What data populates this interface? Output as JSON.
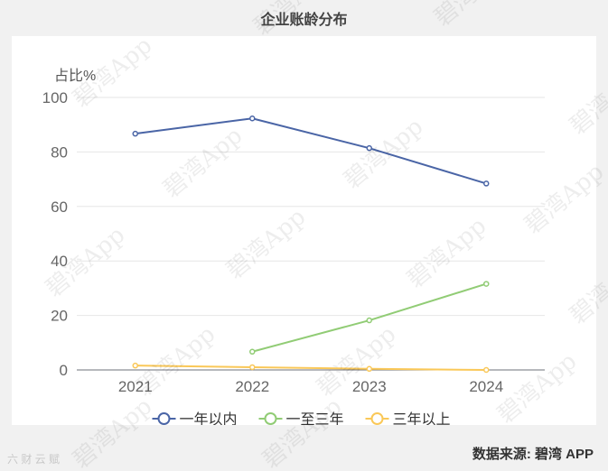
{
  "title": "企业账龄分布",
  "source": "数据来源: 碧湾 APP",
  "bottom_watermark": "六 财 云 赋",
  "watermark_text": "碧湾App",
  "chart_data": {
    "type": "line",
    "title": "企业账龄分布",
    "ylabel": "占比%",
    "xlabel": "",
    "categories": [
      "2021",
      "2022",
      "2023",
      "2024"
    ],
    "ylim": [
      0,
      100
    ],
    "yticks": [
      0,
      20,
      40,
      60,
      80,
      100
    ],
    "grid": true,
    "legend_position": "bottom",
    "series": [
      {
        "name": "一年以内",
        "color": "#5470c6",
        "stroke": "#4a65a6",
        "values": [
          86.7,
          92.3,
          81.4,
          68.4
        ]
      },
      {
        "name": "一至三年",
        "color": "#91cc75",
        "stroke": "#91cc75",
        "values": [
          null,
          6.7,
          18.2,
          31.6
        ]
      },
      {
        "name": "三年以上",
        "color": "#fac858",
        "stroke": "#fac858",
        "values": [
          1.6,
          1.0,
          0.4,
          0.0
        ]
      }
    ]
  }
}
